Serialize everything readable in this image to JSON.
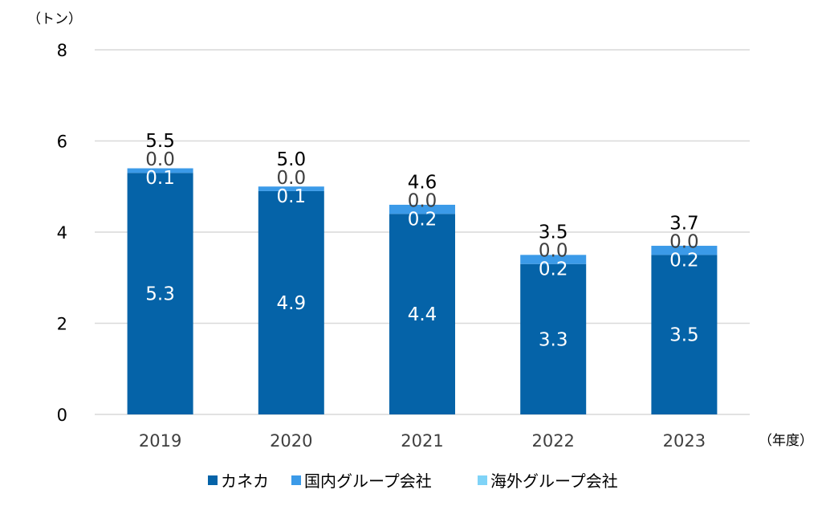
{
  "chart_data": {
    "type": "bar",
    "stacked": true,
    "categories": [
      "2019",
      "2020",
      "2021",
      "2022",
      "2023"
    ],
    "series": [
      {
        "name": "カネカ",
        "values": [
          5.3,
          4.9,
          4.4,
          3.3,
          3.5
        ],
        "color": "#0563a8",
        "labels": [
          "5.3",
          "4.9",
          "4.4",
          "3.3",
          "3.5"
        ]
      },
      {
        "name": "国内グループ会社",
        "values": [
          0.1,
          0.1,
          0.2,
          0.2,
          0.2
        ],
        "color": "#3b9ae8",
        "labels": [
          "0.1",
          "0.1",
          "0.2",
          "0.2",
          "0.2"
        ]
      },
      {
        "name": "海外グループ会社",
        "values": [
          0.0,
          0.0,
          0.0,
          0.0,
          0.0
        ],
        "color": "#7fd3f7",
        "labels": [
          "0.0",
          "0.0",
          "0.0",
          "0.0",
          "0.0"
        ]
      }
    ],
    "totals": [
      5.5,
      5.0,
      4.6,
      3.5,
      3.7
    ],
    "total_labels": [
      "5.5",
      "5.0",
      "4.6",
      "3.5",
      "3.7"
    ],
    "y_unit": "（トン）",
    "x_unit": "（年度）",
    "ylim": [
      0,
      8
    ],
    "yticks": [
      0,
      2,
      4,
      6,
      8
    ],
    "grid": true,
    "legend_position": "bottom"
  }
}
